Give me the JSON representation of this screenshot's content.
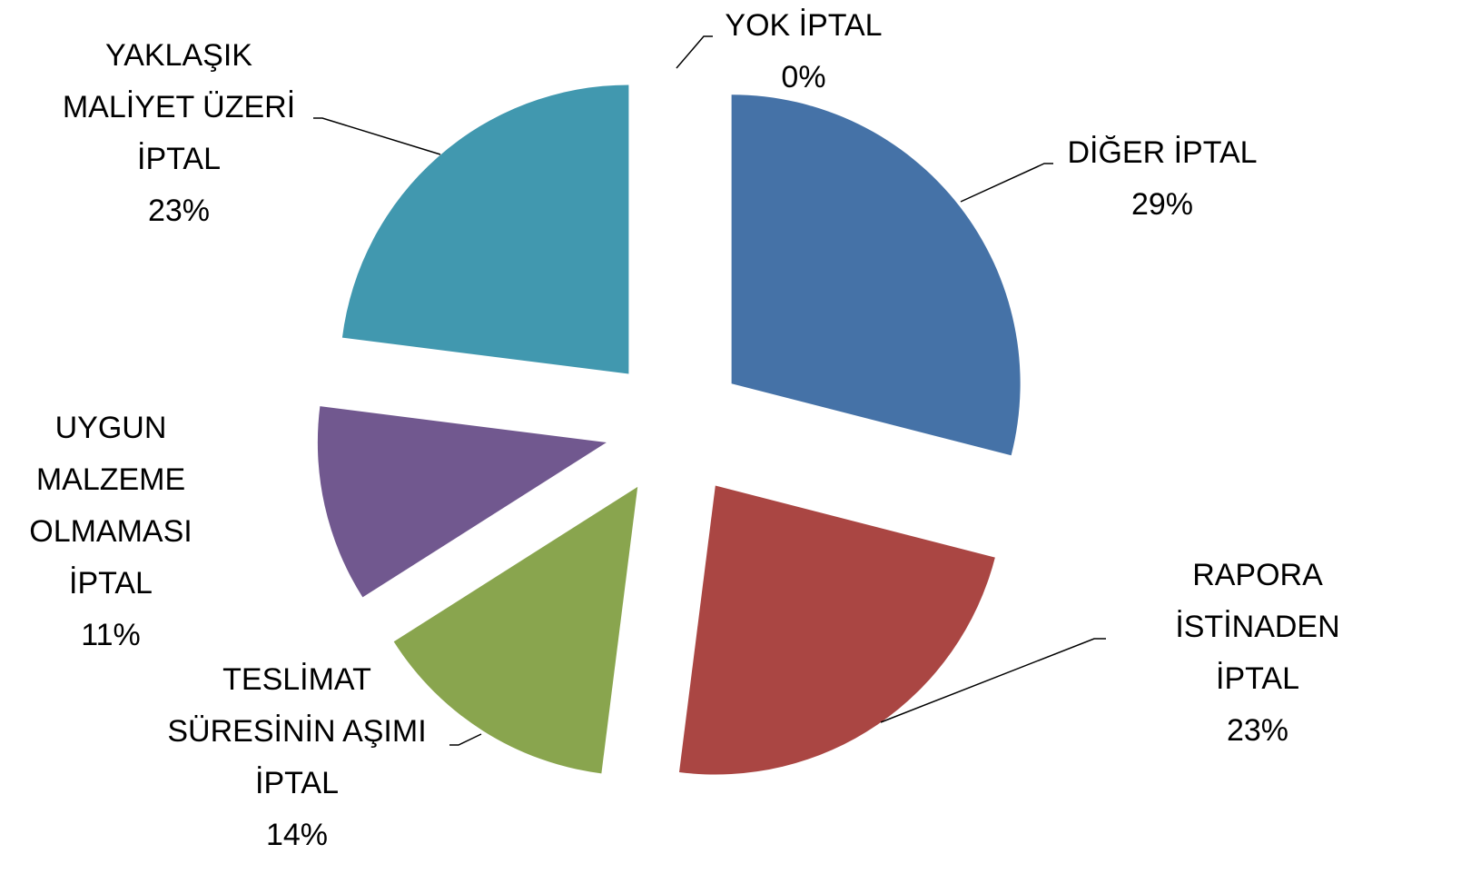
{
  "chart_data": {
    "type": "pie",
    "categories": [
      "YOK İPTAL",
      "DİĞER İPTAL",
      "RAPORA İSTİNADEN İPTAL",
      "TESLİMAT SÜRESİNİN AŞIMI İPTAL",
      "UYGUN MALZEME OLMAMASI İPTAL",
      "YAKLAŞIK MALİYET ÜZERİ İPTAL"
    ],
    "values": [
      0,
      29,
      23,
      14,
      11,
      23
    ],
    "value_labels": [
      "0%",
      "29%",
      "23%",
      "14%",
      "11%",
      "23%"
    ],
    "colors": [
      "#4f81bd",
      "#4572a7",
      "#aa4643",
      "#89a54e",
      "#71588f",
      "#4198af"
    ]
  }
}
